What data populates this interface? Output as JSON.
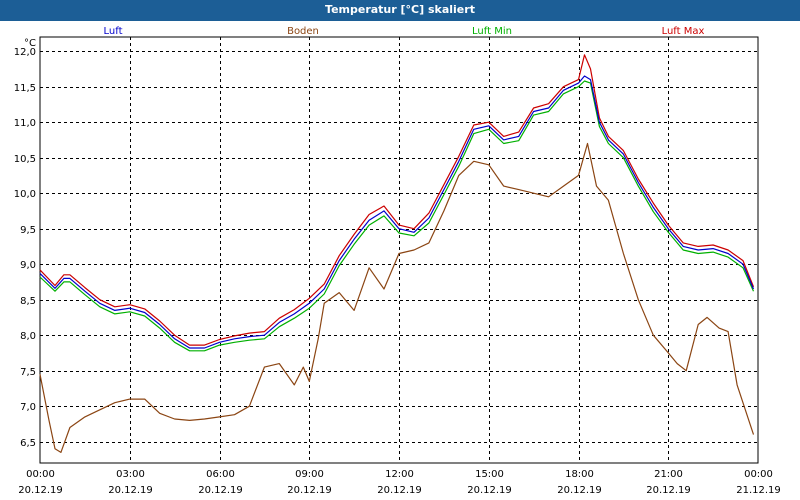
{
  "window": {
    "title": "Temperatur [°C] skaliert"
  },
  "chart_data": {
    "type": "line",
    "title": "Temperatur [°C] skaliert",
    "ylabel": "°C",
    "xlabel": "",
    "ylim": [
      6.2,
      12.2
    ],
    "xlim": [
      0,
      24
    ],
    "grid": true,
    "legend_placement": "top",
    "y_ticks": [
      "6,5",
      "7,0",
      "7,5",
      "8,0",
      "8,5",
      "9,0",
      "9,5",
      "10,0",
      "10,5",
      "11,0",
      "11,5",
      "12,0"
    ],
    "y_tick_values": [
      6.5,
      7.0,
      7.5,
      8.0,
      8.5,
      9.0,
      9.5,
      10.0,
      10.5,
      11.0,
      11.5,
      12.0
    ],
    "x_ticks": [
      {
        "time": "00:00",
        "date": "20.12.19"
      },
      {
        "time": "03:00",
        "date": "20.12.19"
      },
      {
        "time": "06:00",
        "date": "20.12.19"
      },
      {
        "time": "09:00",
        "date": "20.12.19"
      },
      {
        "time": "12:00",
        "date": "20.12.19"
      },
      {
        "time": "15:00",
        "date": "20.12.19"
      },
      {
        "time": "18:00",
        "date": "20.12.19"
      },
      {
        "time": "21:00",
        "date": "20.12.19"
      },
      {
        "time": "00:00",
        "date": "21.12.19"
      }
    ],
    "x_tick_values": [
      0,
      3,
      6,
      9,
      12,
      15,
      18,
      21,
      24
    ],
    "series": [
      {
        "name": "Luft",
        "color": "#0000cc",
        "x": [
          0.0,
          0.5,
          0.8,
          1.0,
          1.5,
          2.0,
          2.5,
          3.0,
          3.5,
          4.0,
          4.5,
          5.0,
          5.5,
          6.0,
          6.5,
          7.0,
          7.5,
          8.0,
          8.5,
          9.0,
          9.5,
          10.0,
          10.5,
          11.0,
          11.5,
          12.0,
          12.5,
          13.0,
          13.5,
          14.0,
          14.5,
          15.0,
          15.5,
          16.0,
          16.5,
          17.0,
          17.5,
          18.0,
          18.2,
          18.4,
          18.7,
          19.0,
          19.5,
          20.0,
          20.5,
          21.0,
          21.5,
          22.0,
          22.5,
          23.0,
          23.5,
          23.85
        ],
        "values": [
          8.87,
          8.66,
          8.8,
          8.8,
          8.62,
          8.45,
          8.35,
          8.38,
          8.32,
          8.15,
          7.95,
          7.82,
          7.82,
          7.9,
          7.95,
          7.98,
          8.0,
          8.18,
          8.3,
          8.45,
          8.65,
          9.05,
          9.35,
          9.62,
          9.75,
          9.5,
          9.45,
          9.65,
          10.05,
          10.45,
          10.9,
          10.95,
          10.75,
          10.8,
          11.15,
          11.2,
          11.45,
          11.55,
          11.65,
          11.6,
          11.0,
          10.75,
          10.55,
          10.15,
          9.8,
          9.5,
          9.25,
          9.2,
          9.22,
          9.15,
          9.0,
          8.65
        ]
      },
      {
        "name": "Boden",
        "color": "#8b4513",
        "x": [
          0.0,
          0.3,
          0.5,
          0.7,
          1.0,
          1.5,
          2.0,
          2.5,
          3.0,
          3.5,
          4.0,
          4.5,
          5.0,
          5.5,
          6.0,
          6.5,
          7.0,
          7.5,
          8.0,
          8.5,
          8.8,
          9.0,
          9.3,
          9.5,
          10.0,
          10.5,
          11.0,
          11.5,
          12.0,
          12.5,
          13.0,
          13.5,
          14.0,
          14.5,
          15.0,
          15.5,
          16.0,
          16.5,
          17.0,
          17.5,
          18.0,
          18.3,
          18.6,
          19.0,
          19.5,
          20.0,
          20.5,
          21.0,
          21.3,
          21.6,
          22.0,
          22.3,
          22.7,
          23.0,
          23.3,
          23.85
        ],
        "values": [
          7.45,
          6.8,
          6.4,
          6.35,
          6.7,
          6.85,
          6.95,
          7.05,
          7.1,
          7.1,
          6.9,
          6.82,
          6.8,
          6.82,
          6.85,
          6.88,
          7.0,
          7.55,
          7.6,
          7.3,
          7.55,
          7.35,
          7.95,
          8.45,
          8.6,
          8.35,
          8.95,
          8.65,
          9.15,
          9.2,
          9.3,
          9.75,
          10.25,
          10.45,
          10.4,
          10.1,
          10.05,
          10.0,
          9.95,
          10.1,
          10.25,
          10.7,
          10.1,
          9.9,
          9.15,
          8.5,
          8.0,
          7.75,
          7.6,
          7.5,
          8.15,
          8.25,
          8.1,
          8.05,
          7.3,
          6.6
        ]
      },
      {
        "name": "Luft Min",
        "color": "#00b000",
        "x": [
          0.0,
          0.5,
          0.8,
          1.0,
          1.5,
          2.0,
          2.5,
          3.0,
          3.5,
          4.0,
          4.5,
          5.0,
          5.5,
          6.0,
          6.5,
          7.0,
          7.5,
          8.0,
          8.5,
          9.0,
          9.5,
          10.0,
          10.5,
          11.0,
          11.5,
          12.0,
          12.5,
          13.0,
          13.5,
          14.0,
          14.5,
          15.0,
          15.5,
          16.0,
          16.5,
          17.0,
          17.5,
          18.0,
          18.2,
          18.4,
          18.7,
          19.0,
          19.5,
          20.0,
          20.5,
          21.0,
          21.5,
          22.0,
          22.5,
          23.0,
          23.5,
          23.85
        ],
        "values": [
          8.82,
          8.62,
          8.75,
          8.75,
          8.57,
          8.4,
          8.3,
          8.33,
          8.27,
          8.1,
          7.9,
          7.78,
          7.78,
          7.86,
          7.9,
          7.93,
          7.95,
          8.12,
          8.24,
          8.38,
          8.58,
          8.98,
          9.28,
          9.55,
          9.68,
          9.44,
          9.4,
          9.58,
          9.98,
          10.38,
          10.84,
          10.9,
          10.7,
          10.74,
          11.1,
          11.15,
          11.4,
          11.5,
          11.58,
          11.55,
          10.94,
          10.7,
          10.5,
          10.1,
          9.74,
          9.45,
          9.2,
          9.15,
          9.17,
          9.1,
          8.95,
          8.62
        ]
      },
      {
        "name": "Luft Max",
        "color": "#cc0000",
        "x": [
          0.0,
          0.5,
          0.8,
          1.0,
          1.5,
          2.0,
          2.5,
          3.0,
          3.5,
          4.0,
          4.5,
          5.0,
          5.5,
          6.0,
          6.5,
          7.0,
          7.5,
          8.0,
          8.5,
          9.0,
          9.5,
          10.0,
          10.5,
          11.0,
          11.5,
          12.0,
          12.5,
          13.0,
          13.5,
          14.0,
          14.5,
          15.0,
          15.5,
          16.0,
          16.5,
          17.0,
          17.5,
          18.0,
          18.2,
          18.4,
          18.7,
          19.0,
          19.5,
          20.0,
          20.5,
          21.0,
          21.5,
          22.0,
          22.5,
          23.0,
          23.5,
          23.85
        ],
        "values": [
          8.92,
          8.7,
          8.85,
          8.85,
          8.67,
          8.5,
          8.4,
          8.43,
          8.37,
          8.2,
          8.0,
          7.86,
          7.86,
          7.94,
          7.99,
          8.03,
          8.05,
          8.24,
          8.36,
          8.52,
          8.72,
          9.12,
          9.42,
          9.7,
          9.82,
          9.55,
          9.5,
          9.72,
          10.12,
          10.52,
          10.96,
          11.0,
          10.8,
          10.86,
          11.2,
          11.26,
          11.5,
          11.6,
          11.95,
          11.75,
          11.06,
          10.8,
          10.6,
          10.2,
          9.86,
          9.55,
          9.3,
          9.25,
          9.27,
          9.2,
          9.05,
          8.68
        ]
      }
    ]
  }
}
